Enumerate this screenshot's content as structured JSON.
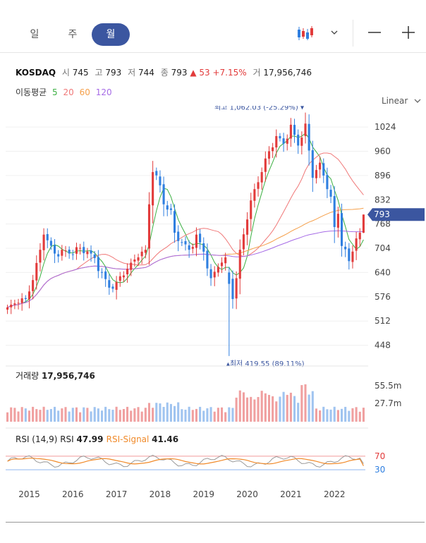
{
  "tabs": [
    "일",
    "주",
    "월"
  ],
  "active_tab": "월",
  "info": {
    "name": "KOSDAQ",
    "open_label": "시",
    "open": "745",
    "high_label": "고",
    "high": "793",
    "low_label": "저",
    "low": "744",
    "close_label": "종",
    "close": "793",
    "change": "▲ 53",
    "change_pct": "+7.15%",
    "volume_label": "거",
    "volume": "17,956,746"
  },
  "ma": {
    "label": "이동평균",
    "periods": [
      "5",
      "20",
      "60",
      "120"
    ],
    "colors": [
      "#3cb043",
      "#f07878",
      "#f5a04b",
      "#a66be6"
    ]
  },
  "scale": "Linear",
  "colors": {
    "up": "#e23b3b",
    "down": "#2f7fe0",
    "accent": "#3b56a0",
    "vol_up": "#f0a0a0",
    "vol_down": "#a0c4f0",
    "rsi": "#999999",
    "rsi_signal": "#f08a2a"
  },
  "chart_data": {
    "type": "candlestick",
    "title": "KOSDAQ",
    "x_start": "2014-07",
    "x_ticks": [
      "2015",
      "2016",
      "2017",
      "2018",
      "2019",
      "2020",
      "2021",
      "2022"
    ],
    "y_ticks": [
      448,
      512,
      576,
      640,
      704,
      768,
      832,
      896,
      960,
      1024
    ],
    "ylim": [
      410,
      1080
    ],
    "current_price": "793",
    "max_label": "최고 1,062.03 (-25.29%)",
    "min_label": "최저 419.55 (89.11%)",
    "anchors": [
      [
        0,
        548
      ],
      [
        3,
        560
      ],
      [
        5,
        570
      ],
      [
        7,
        620
      ],
      [
        9,
        700
      ],
      [
        10,
        740
      ],
      [
        11,
        725
      ],
      [
        13,
        690
      ],
      [
        15,
        700
      ],
      [
        17,
        690
      ],
      [
        20,
        705
      ],
      [
        23,
        690
      ],
      [
        26,
        640
      ],
      [
        28,
        600
      ],
      [
        30,
        615
      ],
      [
        33,
        650
      ],
      [
        36,
        680
      ],
      [
        38,
        700
      ],
      [
        39,
        820
      ],
      [
        40,
        905
      ],
      [
        42,
        870
      ],
      [
        43,
        820
      ],
      [
        45,
        805
      ],
      [
        46,
        745
      ],
      [
        48,
        720
      ],
      [
        50,
        700
      ],
      [
        52,
        740
      ],
      [
        54,
        695
      ],
      [
        56,
        625
      ],
      [
        58,
        655
      ],
      [
        60,
        680
      ],
      [
        61,
        625
      ],
      [
        62,
        570
      ],
      [
        63,
        625
      ],
      [
        64,
        700
      ],
      [
        66,
        780
      ],
      [
        68,
        860
      ],
      [
        70,
        905
      ],
      [
        72,
        960
      ],
      [
        74,
        1000
      ],
      [
        76,
        980
      ],
      [
        78,
        1030
      ],
      [
        80,
        975
      ],
      [
        82,
        1033
      ],
      [
        84,
        890
      ],
      [
        86,
        930
      ],
      [
        88,
        860
      ],
      [
        89,
        840
      ],
      [
        90,
        760
      ],
      [
        91,
        795
      ],
      [
        92,
        710
      ],
      [
        94,
        670
      ],
      [
        96,
        730
      ],
      [
        97,
        745
      ],
      [
        98,
        793
      ]
    ],
    "volume_label": "거래량",
    "volume": "17,956,746",
    "volume_ticks": [
      "55.5m",
      "27.7m"
    ],
    "rsi_label": "RSI (14,9)",
    "rsi_name": "RSI",
    "rsi_value": "47.99",
    "rsi_signal_name": "RSI-Signal",
    "rsi_signal_value": "41.46",
    "rsi_levels": [
      "70",
      "30"
    ]
  }
}
